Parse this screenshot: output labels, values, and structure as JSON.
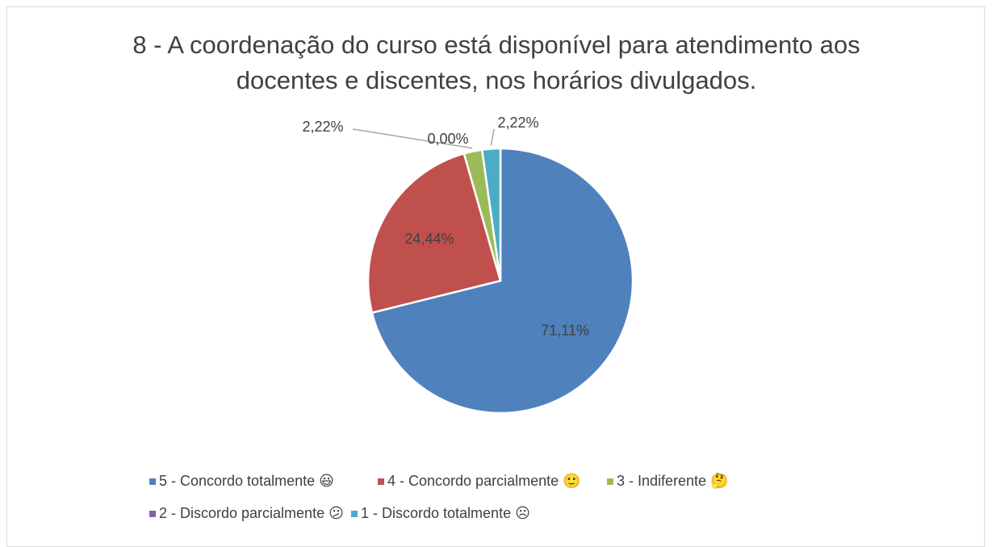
{
  "chart_data": {
    "type": "pie",
    "title": "8 - A coordenação do curso está disponível para atendimento aos docentes e discentes, nos horários divulgados.",
    "categories": [
      "5 - Concordo totalmente 😃",
      "4 - Concordo parcialmente 🙂",
      "3 - Indiferente 🤔",
      "2 - Discordo parcialmente 😕",
      "1 - Discordo totalmente ☹"
    ],
    "values": [
      71.11,
      24.44,
      2.22,
      0,
      2.22
    ],
    "value_labels": [
      "71,11%",
      "24,44%",
      "2,22%",
      "0,00%",
      "2,22%"
    ],
    "colors": [
      "#4f81bd",
      "#c0504d",
      "#9bbb59",
      "#8064a2",
      "#4bacc6"
    ],
    "legend": "bottom"
  }
}
